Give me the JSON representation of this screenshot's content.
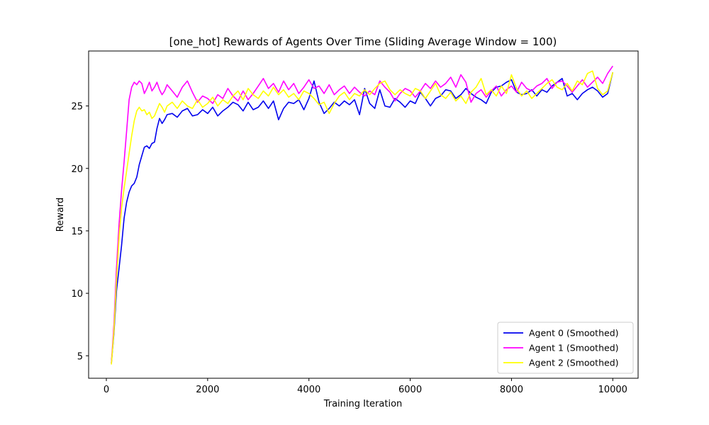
{
  "chart_data": {
    "type": "line",
    "title": "[one_hot] Rewards of Agents Over Time (Sliding Average Window = 100)",
    "xlabel": "Training Iteration",
    "ylabel": "Reward",
    "xlim": [
      -350,
      10500
    ],
    "ylim": [
      3.2,
      29.4
    ],
    "xticks": [
      0,
      2000,
      4000,
      6000,
      8000,
      10000
    ],
    "yticks": [
      5,
      10,
      15,
      20,
      25
    ],
    "grid": false,
    "legend_position": "lower-right",
    "series": [
      {
        "name": "Agent 0 (Smoothed)",
        "color": "#0000ee",
        "x": [
          100,
          150,
          200,
          250,
          300,
          350,
          400,
          450,
          500,
          550,
          600,
          650,
          700,
          750,
          800,
          850,
          900,
          950,
          1000,
          1050,
          1100,
          1150,
          1200,
          1300,
          1400,
          1500,
          1600,
          1700,
          1800,
          1900,
          2000,
          2100,
          2200,
          2300,
          2400,
          2500,
          2600,
          2700,
          2800,
          2900,
          3000,
          3100,
          3200,
          3300,
          3400,
          3500,
          3600,
          3700,
          3800,
          3900,
          4000,
          4100,
          4200,
          4300,
          4400,
          4500,
          4600,
          4700,
          4800,
          4900,
          5000,
          5100,
          5200,
          5300,
          5400,
          5500,
          5600,
          5700,
          5800,
          5900,
          6000,
          6100,
          6200,
          6300,
          6400,
          6500,
          6600,
          6700,
          6800,
          6900,
          7000,
          7100,
          7200,
          7300,
          7400,
          7500,
          7600,
          7700,
          7800,
          7900,
          8000,
          8100,
          8200,
          8300,
          8400,
          8500,
          8600,
          8700,
          8800,
          8900,
          9000,
          9100,
          9200,
          9300,
          9400,
          9500,
          9600,
          9700,
          9800,
          9900,
          10000
        ],
        "values": [
          4.4,
          6.8,
          10.2,
          12.0,
          13.8,
          16.0,
          17.3,
          18.1,
          18.6,
          18.8,
          19.3,
          20.3,
          21.0,
          21.7,
          21.8,
          21.6,
          22.0,
          22.1,
          23.2,
          24.0,
          23.6,
          23.9,
          24.3,
          24.4,
          24.1,
          24.6,
          24.8,
          24.2,
          24.3,
          24.7,
          24.4,
          24.9,
          24.2,
          24.6,
          24.9,
          25.3,
          25.1,
          24.6,
          25.3,
          24.7,
          24.9,
          25.4,
          24.8,
          25.4,
          23.9,
          24.8,
          25.3,
          25.2,
          25.5,
          24.7,
          25.6,
          27.0,
          25.3,
          24.4,
          24.8,
          25.3,
          25.0,
          25.4,
          25.1,
          25.5,
          24.3,
          26.4,
          25.2,
          24.8,
          26.3,
          25.0,
          24.9,
          25.6,
          25.3,
          24.9,
          25.4,
          25.2,
          26.1,
          25.6,
          25.0,
          25.6,
          25.8,
          26.3,
          26.2,
          25.6,
          25.9,
          26.4,
          26.0,
          25.7,
          25.5,
          25.2,
          26.1,
          26.5,
          26.6,
          26.9,
          27.1,
          26.1,
          25.9,
          26.0,
          26.3,
          25.8,
          26.3,
          26.1,
          26.6,
          26.9,
          27.2,
          25.8,
          26.0,
          25.5,
          26.0,
          26.3,
          26.5,
          26.2,
          25.7,
          26.0,
          27.7
        ]
      },
      {
        "name": "Agent 1 (Smoothed)",
        "color": "#ff00ff",
        "x": [
          100,
          150,
          200,
          250,
          300,
          350,
          400,
          450,
          500,
          550,
          600,
          650,
          700,
          750,
          800,
          850,
          900,
          950,
          1000,
          1050,
          1100,
          1150,
          1200,
          1300,
          1400,
          1500,
          1600,
          1700,
          1800,
          1900,
          2000,
          2100,
          2200,
          2300,
          2400,
          2500,
          2600,
          2700,
          2800,
          2900,
          3000,
          3100,
          3200,
          3300,
          3400,
          3500,
          3600,
          3700,
          3800,
          3900,
          4000,
          4100,
          4200,
          4300,
          4400,
          4500,
          4600,
          4700,
          4800,
          4900,
          5000,
          5100,
          5200,
          5300,
          5400,
          5500,
          5600,
          5700,
          5800,
          5900,
          6000,
          6100,
          6200,
          6300,
          6400,
          6500,
          6600,
          6700,
          6800,
          6900,
          7000,
          7100,
          7200,
          7300,
          7400,
          7500,
          7600,
          7700,
          7800,
          7900,
          8000,
          8100,
          8200,
          8300,
          8400,
          8500,
          8600,
          8700,
          8800,
          8900,
          9000,
          9100,
          9200,
          9300,
          9400,
          9500,
          9600,
          9700,
          9800,
          9900,
          10000
        ],
        "values": [
          4.4,
          7.5,
          12.0,
          15.5,
          18.2,
          20.5,
          23.0,
          25.5,
          26.5,
          26.9,
          26.7,
          27.0,
          26.8,
          26.0,
          26.4,
          26.9,
          26.2,
          26.5,
          26.9,
          26.3,
          25.9,
          26.2,
          26.7,
          26.2,
          25.7,
          26.5,
          27.0,
          26.1,
          25.3,
          25.8,
          25.6,
          25.2,
          25.9,
          25.6,
          26.4,
          25.8,
          25.4,
          26.2,
          25.5,
          26.0,
          26.6,
          27.2,
          26.4,
          26.8,
          26.1,
          27.0,
          26.3,
          26.8,
          26.0,
          26.5,
          27.1,
          26.4,
          26.6,
          26.0,
          26.7,
          25.9,
          26.3,
          26.6,
          26.0,
          26.5,
          26.1,
          25.8,
          26.2,
          25.9,
          27.0,
          26.5,
          26.1,
          25.4,
          26.0,
          26.4,
          26.2,
          25.7,
          26.2,
          26.8,
          26.4,
          27.0,
          26.5,
          26.8,
          27.3,
          26.5,
          27.5,
          26.9,
          25.3,
          26.0,
          26.3,
          25.7,
          26.2,
          26.6,
          25.8,
          26.3,
          26.6,
          26.1,
          26.9,
          26.4,
          26.2,
          26.6,
          26.8,
          27.2,
          26.4,
          26.9,
          27.0,
          26.6,
          26.1,
          26.6,
          27.1,
          26.5,
          26.9,
          27.3,
          26.8,
          27.6,
          28.2
        ]
      },
      {
        "name": "Agent 2 (Smoothed)",
        "color": "#ffff00",
        "x": [
          100,
          150,
          200,
          250,
          300,
          350,
          400,
          450,
          500,
          550,
          600,
          650,
          700,
          750,
          800,
          850,
          900,
          950,
          1000,
          1050,
          1100,
          1150,
          1200,
          1300,
          1400,
          1500,
          1600,
          1700,
          1800,
          1900,
          2000,
          2100,
          2200,
          2300,
          2400,
          2500,
          2600,
          2700,
          2800,
          2900,
          3000,
          3100,
          3200,
          3300,
          3400,
          3500,
          3600,
          3700,
          3800,
          3900,
          4000,
          4100,
          4200,
          4300,
          4400,
          4500,
          4600,
          4700,
          4800,
          4900,
          5000,
          5100,
          5200,
          5300,
          5400,
          5500,
          5600,
          5700,
          5800,
          5900,
          6000,
          6100,
          6200,
          6300,
          6400,
          6500,
          6600,
          6700,
          6800,
          6900,
          7000,
          7100,
          7200,
          7300,
          7400,
          7500,
          7600,
          7700,
          7800,
          7900,
          8000,
          8100,
          8200,
          8300,
          8400,
          8500,
          8600,
          8700,
          8800,
          8900,
          9000,
          9100,
          9200,
          9300,
          9400,
          9500,
          9600,
          9700,
          9800,
          9900,
          10000
        ],
        "values": [
          4.3,
          7.0,
          11.0,
          14.5,
          16.8,
          18.4,
          19.8,
          21.2,
          22.6,
          23.8,
          24.6,
          24.9,
          24.6,
          24.7,
          24.3,
          24.5,
          24.0,
          24.2,
          24.7,
          25.2,
          24.9,
          24.5,
          25.0,
          25.3,
          24.8,
          25.4,
          25.0,
          24.8,
          25.5,
          24.9,
          25.2,
          25.7,
          25.0,
          25.5,
          25.2,
          25.8,
          26.2,
          25.5,
          26.4,
          25.9,
          25.6,
          26.2,
          25.8,
          26.5,
          25.9,
          26.3,
          25.7,
          26.0,
          25.5,
          26.2,
          26.0,
          25.6,
          25.1,
          25.3,
          24.4,
          25.2,
          25.8,
          26.1,
          25.5,
          26.0,
          25.8,
          26.3,
          25.9,
          26.4,
          26.8,
          27.0,
          26.3,
          25.9,
          26.3,
          26.0,
          25.8,
          26.4,
          26.2,
          25.6,
          26.2,
          26.8,
          25.9,
          25.6,
          26.1,
          25.4,
          25.8,
          25.2,
          26.1,
          26.5,
          27.2,
          25.9,
          26.3,
          25.8,
          26.6,
          26.0,
          27.5,
          26.4,
          25.8,
          26.2,
          25.6,
          26.0,
          26.4,
          26.8,
          27.1,
          26.5,
          26.3,
          26.8,
          26.2,
          27.0,
          26.7,
          27.6,
          27.8,
          26.4,
          25.9,
          26.2,
          27.7
        ]
      }
    ]
  }
}
